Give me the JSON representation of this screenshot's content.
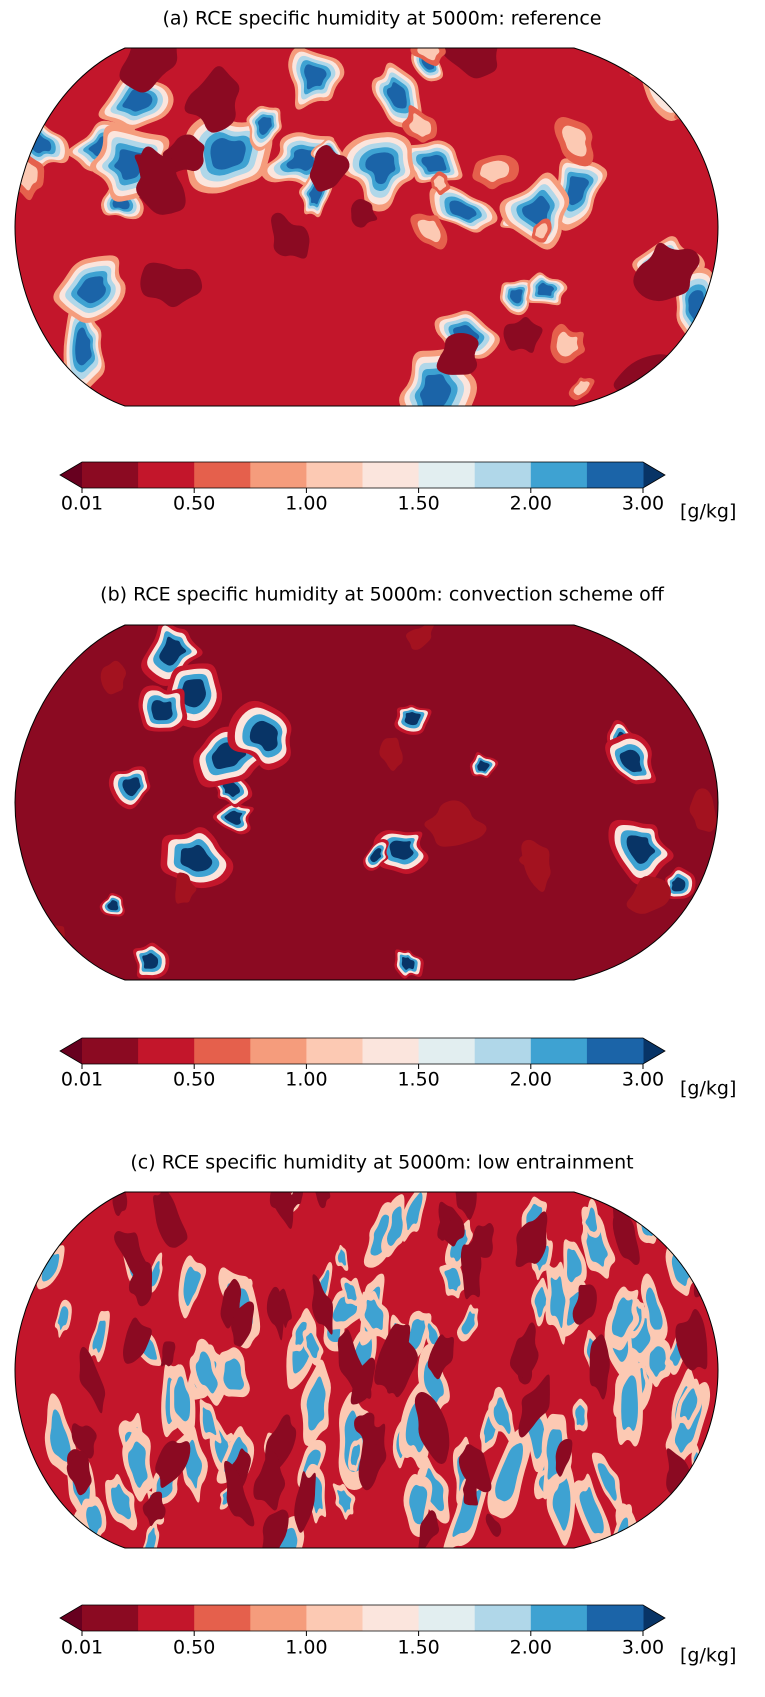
{
  "colormap": {
    "under": "#67001f",
    "colors": [
      "#8b0a22",
      "#c3162b",
      "#e5604c",
      "#f59c7c",
      "#fcc9b3",
      "#fbe5dd",
      "#e2eef0",
      "#b0d7e9",
      "#3ea2d2",
      "#1b64a8"
    ],
    "over": "#083466"
  },
  "panels": [
    {
      "title": "(a) RCE specific humidity at 5000m: reference",
      "colorbar": {
        "ticks": [
          0.01,
          {
            "value": 0.5,
            "label": "0.50"
          },
          {
            "value": 1.0,
            "label": "1.00"
          },
          {
            "value": 1.5,
            "label": "1.50"
          },
          {
            "value": 2.0,
            "label": "2.00"
          },
          {
            "value": 3.0,
            "label": "3.00"
          }
        ],
        "unit": "[g/kg]"
      }
    },
    {
      "title": "(b) RCE specific humidity at 5000m: convection scheme off",
      "colorbar": {
        "ticks": [
          0.01,
          {
            "value": 0.5,
            "label": "0.50"
          },
          {
            "value": 1.0,
            "label": "1.00"
          },
          {
            "value": 1.5,
            "label": "1.50"
          },
          {
            "value": 2.0,
            "label": "2.00"
          },
          {
            "value": 3.0,
            "label": "3.00"
          }
        ],
        "unit": "[g/kg]"
      }
    },
    {
      "title": "(c) RCE specific humidity at 5000m: low entrainment",
      "colorbar": {
        "ticks": [
          0.01,
          {
            "value": 0.5,
            "label": "0.50"
          },
          {
            "value": 1.0,
            "label": "1.00"
          },
          {
            "value": 1.5,
            "label": "1.50"
          },
          {
            "value": 2.0,
            "label": "2.00"
          },
          {
            "value": 3.0,
            "label": "3.00"
          }
        ],
        "unit": "[g/kg]"
      }
    }
  ]
}
